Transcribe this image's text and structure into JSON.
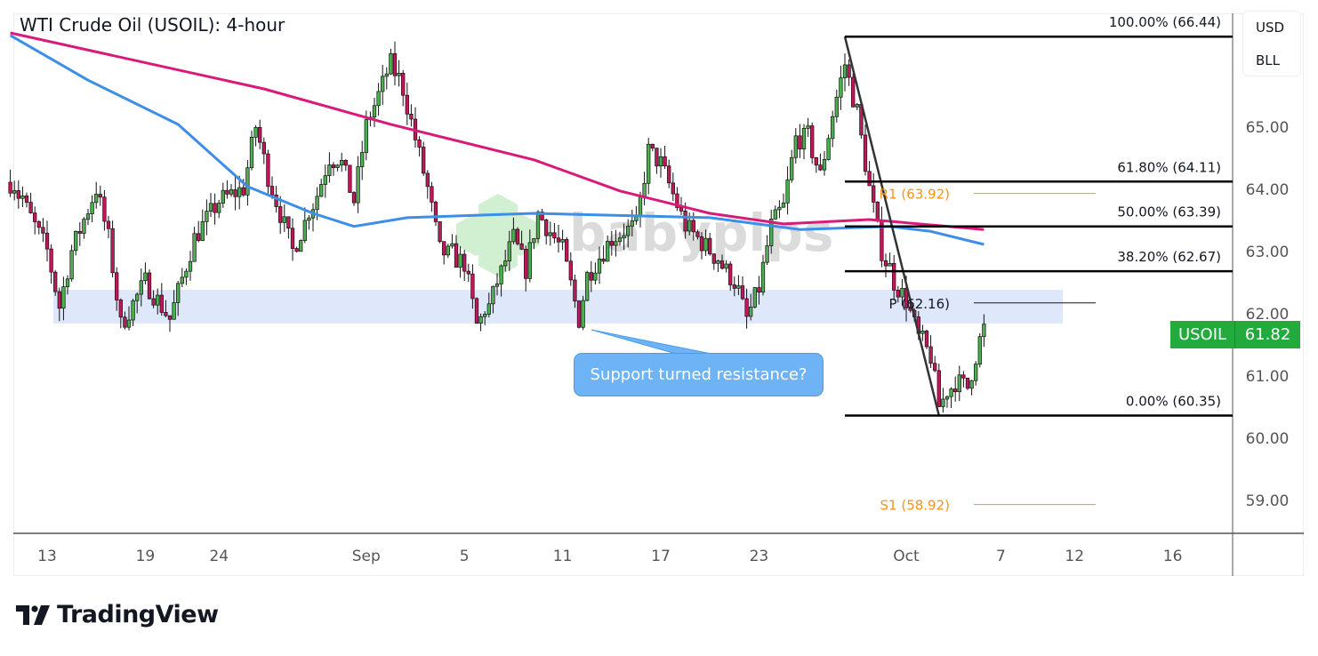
{
  "chart_data": {
    "type": "candlestick",
    "title": "WTI Crude Oil (USOIL): 4-hour",
    "symbol": "USOIL",
    "last_price": "61.82",
    "currency": [
      "USD",
      "BLL"
    ],
    "x_ticks": [
      "13",
      "19",
      "24",
      "Sep",
      "5",
      "11",
      "17",
      "23",
      "Oct",
      "7",
      "12",
      "16"
    ],
    "x_tick_dates": [
      "Aug 13",
      "Aug 19",
      "Aug 24",
      "Sep 1",
      "Sep 5",
      "Sep 11",
      "Sep 17",
      "Sep 23",
      "Oct 1",
      "Oct 7",
      "Oct 12",
      "Oct 16"
    ],
    "y_ticks": [
      "65.00",
      "64.00",
      "63.00",
      "62.00",
      "61.00",
      "60.00",
      "59.00"
    ],
    "ylim": [
      58.56,
      66.8
    ],
    "grid": false,
    "price_path": [
      [
        "Aug 11 12:00",
        64.1
      ],
      [
        "Aug 12 00:00",
        63.8
      ],
      [
        "Aug 13 00:00",
        63.0
      ],
      [
        "Aug 13 12:00",
        62.1
      ],
      [
        "Aug 14 00:00",
        63.0
      ],
      [
        "Aug 15 00:00",
        64.0
      ],
      [
        "Aug 15 12:00",
        63.2
      ],
      [
        "Aug 18 00:00",
        61.8
      ],
      [
        "Aug 19 00:00",
        62.5
      ],
      [
        "Aug 20 00:00",
        61.9
      ],
      [
        "Aug 21 00:00",
        63.2
      ],
      [
        "Aug 22 00:00",
        63.8
      ],
      [
        "Aug 25 00:00",
        64.0
      ],
      [
        "Aug 25 12:00",
        65.0
      ],
      [
        "Aug 26 00:00",
        64.2
      ],
      [
        "Aug 27 00:00",
        63.0
      ],
      [
        "Aug 28 00:00",
        63.9
      ],
      [
        "Aug 28 12:00",
        64.5
      ],
      [
        "Aug 29 00:00",
        64.4
      ],
      [
        "Aug 29 12:00",
        63.8
      ],
      [
        "Sep 1 00:00",
        65.0
      ],
      [
        "Sep 2 00:00",
        66.0
      ],
      [
        "Sep 2 12:00",
        65.6
      ],
      [
        "Sep 3 00:00",
        64.8
      ],
      [
        "Sep 3 12:00",
        64.0
      ],
      [
        "Sep 4 00:00",
        63.0
      ],
      [
        "Sep 5 00:00",
        62.8
      ],
      [
        "Sep 5 12:00",
        61.8
      ],
      [
        "Sep 8 00:00",
        62.1
      ],
      [
        "Sep 9 00:00",
        63.2
      ],
      [
        "Sep 9 12:00",
        62.7
      ],
      [
        "Sep 10 00:00",
        63.6
      ],
      [
        "Sep 11 00:00",
        63.0
      ],
      [
        "Sep 11 16:00",
        61.9
      ],
      [
        "Sep 12 00:00",
        62.6
      ],
      [
        "Sep 15 00:00",
        63.2
      ],
      [
        "Sep 16 00:00",
        63.4
      ],
      [
        "Sep 16 12:00",
        64.6
      ],
      [
        "Sep 17 00:00",
        64.4
      ],
      [
        "Sep 18 00:00",
        63.4
      ],
      [
        "Sep 19 00:00",
        63.0
      ],
      [
        "Sep 22 00:00",
        62.5
      ],
      [
        "Sep 22 12:00",
        61.9
      ],
      [
        "Sep 23 00:00",
        62.4
      ],
      [
        "Sep 23 12:00",
        63.4
      ],
      [
        "Sep 24 00:00",
        63.7
      ],
      [
        "Sep 24 12:00",
        64.8
      ],
      [
        "Sep 25 00:00",
        64.8
      ],
      [
        "Sep 25 12:00",
        64.2
      ],
      [
        "Sep 26 00:00",
        65.2
      ],
      [
        "Sep 26 12:00",
        66.0
      ],
      [
        "Sep 29 00:00",
        65.2
      ],
      [
        "Sep 29 12:00",
        64.0
      ],
      [
        "Sep 30 00:00",
        63.0
      ],
      [
        "Sep 30 12:00",
        62.5
      ],
      [
        "Oct 1 00:00",
        62.2
      ],
      [
        "Oct 1 12:00",
        61.6
      ],
      [
        "Oct 2 00:00",
        61.3
      ],
      [
        "Oct 2 08:00",
        60.5
      ],
      [
        "Oct 3 00:00",
        60.9
      ],
      [
        "Oct 3 12:00",
        60.8
      ],
      [
        "Oct 6 04:00",
        61.82
      ]
    ],
    "moving_averages": [
      {
        "color": "#d81b7a",
        "points": [
          [
            "Aug 11 12:00",
            66.5
          ],
          [
            "Aug 25 20:00",
            65.6
          ],
          [
            "Sep 2 00:00",
            65.03
          ],
          [
            "Sep 9 20:00",
            64.46
          ],
          [
            "Sep 15 08:00",
            63.96
          ],
          [
            "Sep 19 00:00",
            63.6
          ],
          [
            "Sep 24 00:00",
            63.43
          ],
          [
            "Sep 29 12:00",
            63.5
          ],
          [
            "Oct 6 04:00",
            63.34
          ]
        ]
      },
      {
        "color": "#3d8ee8",
        "points": [
          [
            "Aug 11 12:00",
            66.46
          ],
          [
            "Aug 14 16:00",
            65.74
          ],
          [
            "Aug 20 08:00",
            65.03
          ],
          [
            "Aug 25 04:00",
            64.03
          ],
          [
            "Aug 27 20:00",
            63.6
          ],
          [
            "Aug 29 12:00",
            63.39
          ],
          [
            "Sep 2 16:00",
            63.53
          ],
          [
            "Sep 9 20:00",
            63.6
          ],
          [
            "Sep 19 00:00",
            63.53
          ],
          [
            "Sep 24 16:00",
            63.34
          ],
          [
            "Sep 30 08:00",
            63.39
          ],
          [
            "Oct 2 00:00",
            63.31
          ],
          [
            "Oct 6 04:00",
            63.1
          ]
        ]
      }
    ],
    "fibonacci": {
      "from": [
        "Sep 26 12:00",
        66.44
      ],
      "to": [
        "Oct 2 08:00",
        60.35
      ],
      "levels": [
        {
          "label": "100.00% (66.44)",
          "price": 66.44
        },
        {
          "label": "61.80% (64.11)",
          "price": 64.11
        },
        {
          "label": "50.00% (63.39)",
          "price": 63.39
        },
        {
          "label": "38.20% (62.67)",
          "price": 62.67
        },
        {
          "label": "0.00% (60.35)",
          "price": 60.35
        }
      ]
    },
    "pivots": [
      {
        "label": "R1 (63.92)",
        "price": 63.92,
        "color": "#f7931a"
      },
      {
        "label": "P (62.16)",
        "price": 62.16,
        "color": "#131722"
      },
      {
        "label": "S1 (58.92)",
        "price": 58.92,
        "color": "#f7931a"
      }
    ],
    "support_zone": {
      "from": 61.83,
      "to": 62.37,
      "color": "#dbe4fb"
    },
    "annotation": "Support turned resistance?",
    "colors": {
      "up": "#4caf50",
      "down": "#c2185b",
      "badge": "#22ab3c"
    }
  },
  "watermark": "babypips",
  "brand": "TradingView"
}
